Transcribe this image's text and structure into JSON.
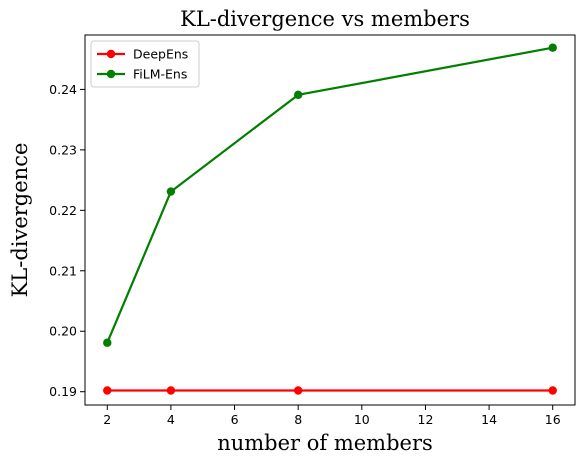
{
  "chart_data": {
    "type": "line",
    "title": "KL-divergence vs members",
    "xlabel": "number of members",
    "ylabel": "KL-divergence",
    "xlim": [
      1.3,
      16.7
    ],
    "ylim": [
      0.1878,
      0.249
    ],
    "xticks": [
      2,
      4,
      6,
      8,
      10,
      12,
      14,
      16
    ],
    "yticks": [
      0.19,
      0.2,
      0.21,
      0.22,
      0.23,
      0.24
    ],
    "ytick_labels": [
      "0.19",
      "0.20",
      "0.21",
      "0.22",
      "0.23",
      "0.24"
    ],
    "grid": false,
    "legend_position": "top-left",
    "series": [
      {
        "name": "DeepEns",
        "color": "#ff0000",
        "x": [
          2,
          4,
          8,
          16
        ],
        "y": [
          0.1902,
          0.1902,
          0.1902,
          0.1902
        ]
      },
      {
        "name": "FiLM-Ens",
        "color": "#007f00",
        "x": [
          2,
          4,
          8,
          16
        ],
        "y": [
          0.1981,
          0.2231,
          0.2391,
          0.2469
        ]
      }
    ]
  }
}
